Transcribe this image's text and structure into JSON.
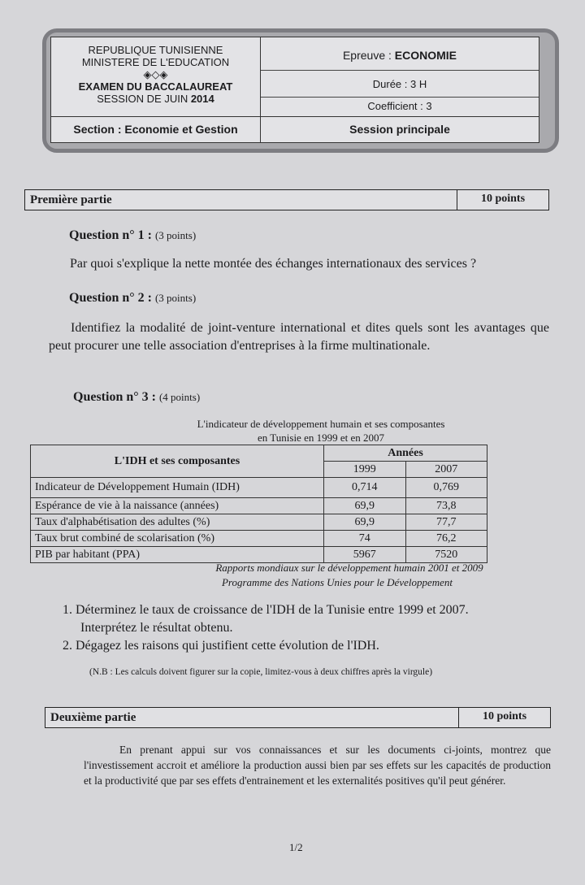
{
  "header": {
    "left_lines": [
      "REPUBLIQUE   TUNISIENNE",
      "MINISTERE DE L'EDUCATION",
      "◈◇◈",
      "EXAMEN DU BACCALAUREAT"
    ],
    "session_prefix": "SESSION DE JUIN ",
    "session_year": "2014",
    "section": "Section : Economie et Gestion",
    "epreuve_label": "Epreuve : ",
    "epreuve_value": "ECONOMIE",
    "duree": "Durée : 3 H",
    "coefficient": "Coefficient : 3",
    "session_type": "Session principale"
  },
  "part1": {
    "title": "Première partie",
    "points": "10 points",
    "q1": {
      "label": "Question n° 1 : ",
      "points": "(3 points)",
      "text": "Par quoi  s'explique la nette montée des échanges internationaux des services ?"
    },
    "q2": {
      "label": "Question n° 2 : ",
      "points": "(3 points)",
      "text": "Identifiez  la modalité  de joint-venture international  et dites quels sont les avantages que peut procurer une telle association d'entreprises à la firme multinationale."
    },
    "q3": {
      "label": "Question n° 3 : ",
      "points": "(4 points)",
      "caption1": "L'indicateur de développement humain et ses composantes",
      "caption2": "en Tunisie en 1999 et en 2007",
      "table": {
        "head": "L'IDH et ses composantes",
        "years_label": "Années",
        "years": [
          "1999",
          "2007"
        ],
        "rows": [
          [
            "Indicateur de Développement Humain (IDH)",
            "0,714",
            "0,769"
          ],
          [
            "Espérance de vie à la naissance (années)",
            "69,9",
            "73,8"
          ],
          [
            "Taux d'alphabétisation des adultes (%)",
            "69,9",
            "77,7"
          ],
          [
            "Taux brut combiné de scolarisation (%)",
            "74",
            "76,2"
          ],
          [
            "PIB par habitant  (PPA)",
            "5967",
            "7520"
          ]
        ]
      },
      "source1": "Rapports mondiaux sur le développement humain 2001 et 2009",
      "source2": "Programme des Nations Unies pour le Développement",
      "items": [
        "1.  Déterminez le taux de croissance de l'IDH de la Tunisie entre 1999 et 2007.",
        "Interprétez le résultat obtenu.",
        "2.  Dégagez les raisons qui justifient cette évolution de l'IDH."
      ],
      "nb": "(N.B : Les calculs doivent figurer sur la copie, limitez-vous à deux chiffres après la virgule)"
    }
  },
  "part2": {
    "title": "Deuxième partie",
    "points": "10 points",
    "text": "En prenant appui sur vos connaissances et sur les documents ci-joints, montrez que l'investissement accroit et améliore la production aussi bien par ses effets sur les capacités de production et la productivité que par ses effets d'entrainement et les externalités positives qu'il peut générer."
  },
  "page": "1/2"
}
